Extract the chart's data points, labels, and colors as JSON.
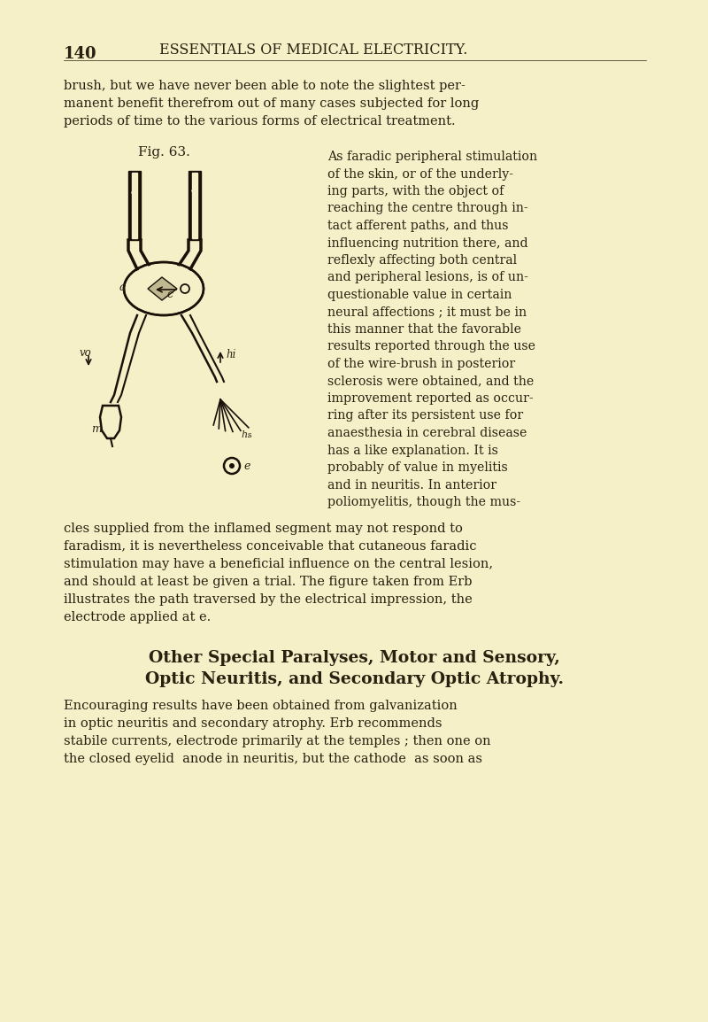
{
  "bg_color": "#f5f0c8",
  "page_number": "140",
  "header": "ESSENTIALS OF MEDICAL ELECTRICITY.",
  "para1": "brush, but we have never been able to note the slightest per-\nmanent benefit therefrom out of many cases subjected for long\nperiods of time to the various forms of electrical treatment.",
  "fig_caption": "Fig. 63.",
  "para2_right": "As faradic peripheral stimulation\nof the skin, or of the underly-\ning parts, with the object of\nreaching the centre through in-\ntact afferent paths, and thus\ninfluencing nutrition there, and\nreflexly affecting both central\nand peripheral lesions, is of un-\nquestionable value in certain\nneural affections ; it must be in\nthis manner that the favorable\nresults reported through the use\nof the wire-brush in posterior\nsclerosis were obtained, and the\nimprovement reported as occur-\nring after its persistent use for\nanaesthesia in cerebral disease\nhas a like explanation. It is\nprobably of value in myelitis\nand in neuritis. In anterior\npoliomyelitis, though the mus-",
  "para3": "cles supplied from the inflamed segment may not respond to\nfaradism, it is nevertheless conceivable that cutaneous faradic\nstimulation may have a beneficial influence on the central lesion,\nand should at least be given a trial. The figure taken from Erb\nillustrates the path traversed by the electrical impression, the\nelectrode applied at e.",
  "section_heading1": "Other Special Paralyses, Motor and Sensory,",
  "section_heading2": "Optic Neuritis, and Secondary Optic Atrophy.",
  "para4": "Encouraging results have been obtained from galvanization\nin optic neuritis and secondary atrophy. Erb recommends\nstabile currents, electrode primarily at the temples ; then one on\nthe closed eyelid  anode in neuritis, but the cathode  as soon as",
  "text_color": "#2a2010",
  "diagram_color": "#1a1008"
}
